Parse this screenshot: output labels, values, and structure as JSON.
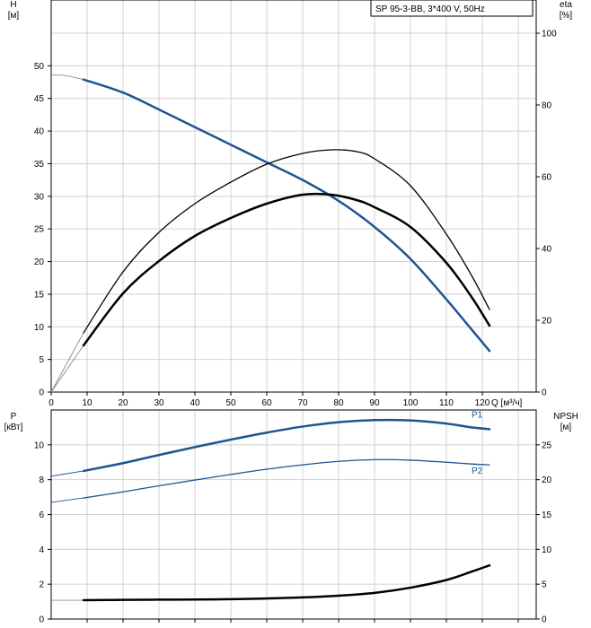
{
  "title_box": "SP 95-3-BB, 3*400 V, 50Hz",
  "colors": {
    "blue": "#1f5591",
    "black": "#000000",
    "grid": "#d0d0d0"
  },
  "chart_data": [
    {
      "id": "top",
      "type": "line",
      "x_axis": {
        "label": "Q [м³/ч]",
        "range": [
          0,
          135
        ],
        "ticks": [
          0,
          10,
          20,
          30,
          40,
          50,
          60,
          70,
          80,
          90,
          100,
          110,
          120
        ]
      },
      "y_left": {
        "label_top": "H",
        "label_unit": "[м]",
        "range": [
          0,
          55
        ],
        "ticks": [
          0,
          5,
          10,
          15,
          20,
          25,
          30,
          35,
          40,
          45,
          50
        ]
      },
      "y_right": {
        "label_top": "eta",
        "label_unit": "[%]",
        "range": [
          0,
          100
        ],
        "ticks": [
          0,
          20,
          40,
          60,
          80,
          100
        ]
      },
      "grid": true,
      "series": [
        {
          "key": "H",
          "axis": "left",
          "color": "blue",
          "width": 2.5,
          "x": [
            9,
            20,
            30,
            40,
            50,
            60,
            70,
            80,
            90,
            100,
            110,
            117,
            122
          ],
          "y": [
            47.9,
            45.9,
            43.3,
            40.6,
            37.9,
            35.2,
            32.5,
            29.3,
            25.3,
            20.4,
            14.2,
            9.6,
            6.3
          ],
          "ext_x": [
            0,
            4,
            9
          ],
          "ext_y": [
            48.6,
            48.5,
            47.9
          ]
        },
        {
          "key": "eta_thin",
          "axis": "right",
          "color": "black",
          "width": 1.3,
          "x": [
            9,
            20,
            30,
            40,
            50,
            60,
            70,
            78,
            85,
            90,
            100,
            110,
            117,
            122
          ],
          "y": [
            16.5,
            33.5,
            44.5,
            52.5,
            58.5,
            63.5,
            66.5,
            67.5,
            67,
            65,
            57.5,
            44,
            32.5,
            23
          ],
          "ext_x": [
            0,
            9
          ],
          "ext_y": [
            0,
            16.5
          ]
        },
        {
          "key": "eta_thick",
          "axis": "right",
          "color": "black",
          "width": 2.5,
          "x": [
            9,
            20,
            30,
            40,
            50,
            60,
            70,
            78,
            85,
            90,
            100,
            110,
            117,
            122
          ],
          "y": [
            13,
            27.5,
            36.5,
            43.5,
            48.5,
            52.5,
            55,
            55,
            53.5,
            51.5,
            46,
            36,
            26.5,
            18.5
          ],
          "ext_x": [
            0,
            9
          ],
          "ext_y": [
            0,
            13
          ]
        }
      ]
    },
    {
      "id": "bottom",
      "type": "line",
      "x_axis": {
        "range": [
          0,
          135
        ]
      },
      "y_left": {
        "label_top": "P",
        "label_unit": "[кВт]",
        "range": [
          0,
          12
        ],
        "ticks": [
          0,
          2,
          4,
          6,
          8,
          10
        ]
      },
      "y_right": {
        "label_top": "NPSH",
        "label_unit": "[м]",
        "range": [
          0,
          30
        ],
        "ticks": [
          0,
          5,
          10,
          15,
          20,
          25
        ]
      },
      "grid": true,
      "series": [
        {
          "key": "P1",
          "name": "P1",
          "axis": "left",
          "color": "blue",
          "width": 2.5,
          "x": [
            9,
            20,
            30,
            40,
            50,
            60,
            70,
            80,
            90,
            100,
            110,
            117,
            122
          ],
          "y": [
            8.5,
            8.95,
            9.42,
            9.87,
            10.3,
            10.7,
            11.05,
            11.3,
            11.42,
            11.4,
            11.22,
            11.0,
            10.9
          ],
          "ext_x": [
            0,
            9
          ],
          "ext_y": [
            8.2,
            8.5
          ]
        },
        {
          "key": "P2",
          "name": "P2",
          "axis": "left",
          "color": "blue",
          "width": 1.3,
          "x": [
            9,
            20,
            30,
            40,
            50,
            60,
            70,
            80,
            90,
            100,
            110,
            117,
            122
          ],
          "y": [
            6.95,
            7.3,
            7.65,
            7.98,
            8.3,
            8.6,
            8.85,
            9.05,
            9.15,
            9.12,
            9.0,
            8.9,
            8.85
          ],
          "ext_x": [
            0,
            9
          ],
          "ext_y": [
            6.7,
            6.95
          ]
        },
        {
          "key": "NPSH",
          "axis": "right",
          "color": "black",
          "width": 2.5,
          "x": [
            9,
            20,
            30,
            40,
            50,
            60,
            70,
            80,
            90,
            100,
            110,
            117,
            122
          ],
          "y": [
            2.7,
            2.75,
            2.78,
            2.8,
            2.85,
            2.95,
            3.1,
            3.35,
            3.75,
            4.5,
            5.6,
            6.8,
            7.7
          ],
          "ext_x": [
            0,
            9
          ],
          "ext_y": [
            2.7,
            2.7
          ]
        }
      ]
    }
  ]
}
